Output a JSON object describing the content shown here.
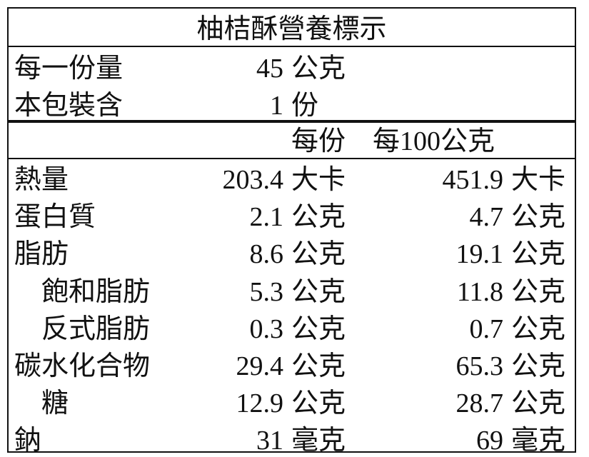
{
  "title": "柚桔酥營養標示",
  "serving": [
    {
      "label": "每一份量",
      "value": 45,
      "unit": "公克"
    },
    {
      "label": "本包裝含",
      "value": 1,
      "unit": "份"
    }
  ],
  "header": {
    "per_serving": "每份",
    "per_100g": "每100公克"
  },
  "rows": [
    {
      "name": "熱量",
      "indent": 0,
      "per_serving": 203.4,
      "per_serving_unit": "大卡",
      "per_100g": 451.9,
      "per_100g_unit": "大卡"
    },
    {
      "name": "蛋白質",
      "indent": 0,
      "per_serving": 2.1,
      "per_serving_unit": "公克",
      "per_100g": 4.7,
      "per_100g_unit": "公克"
    },
    {
      "name": "脂肪",
      "indent": 0,
      "per_serving": 8.6,
      "per_serving_unit": "公克",
      "per_100g": 19.1,
      "per_100g_unit": "公克"
    },
    {
      "name": "飽和脂肪",
      "indent": 1,
      "per_serving": 5.3,
      "per_serving_unit": "公克",
      "per_100g": 11.8,
      "per_100g_unit": "公克"
    },
    {
      "name": "反式脂肪",
      "indent": 1,
      "per_serving": 0.3,
      "per_serving_unit": "公克",
      "per_100g": 0.7,
      "per_100g_unit": "公克"
    },
    {
      "name": "碳水化合物",
      "indent": 0,
      "per_serving": 29.4,
      "per_serving_unit": "公克",
      "per_100g": 65.3,
      "per_100g_unit": "公克"
    },
    {
      "name": "糖",
      "indent": 1,
      "per_serving": 12.9,
      "per_serving_unit": "公克",
      "per_100g": 28.7,
      "per_100g_unit": "公克"
    },
    {
      "name": "鈉",
      "indent": 0,
      "per_serving": 31,
      "per_serving_unit": "毫克",
      "per_100g": 69,
      "per_100g_unit": "毫克"
    }
  ]
}
